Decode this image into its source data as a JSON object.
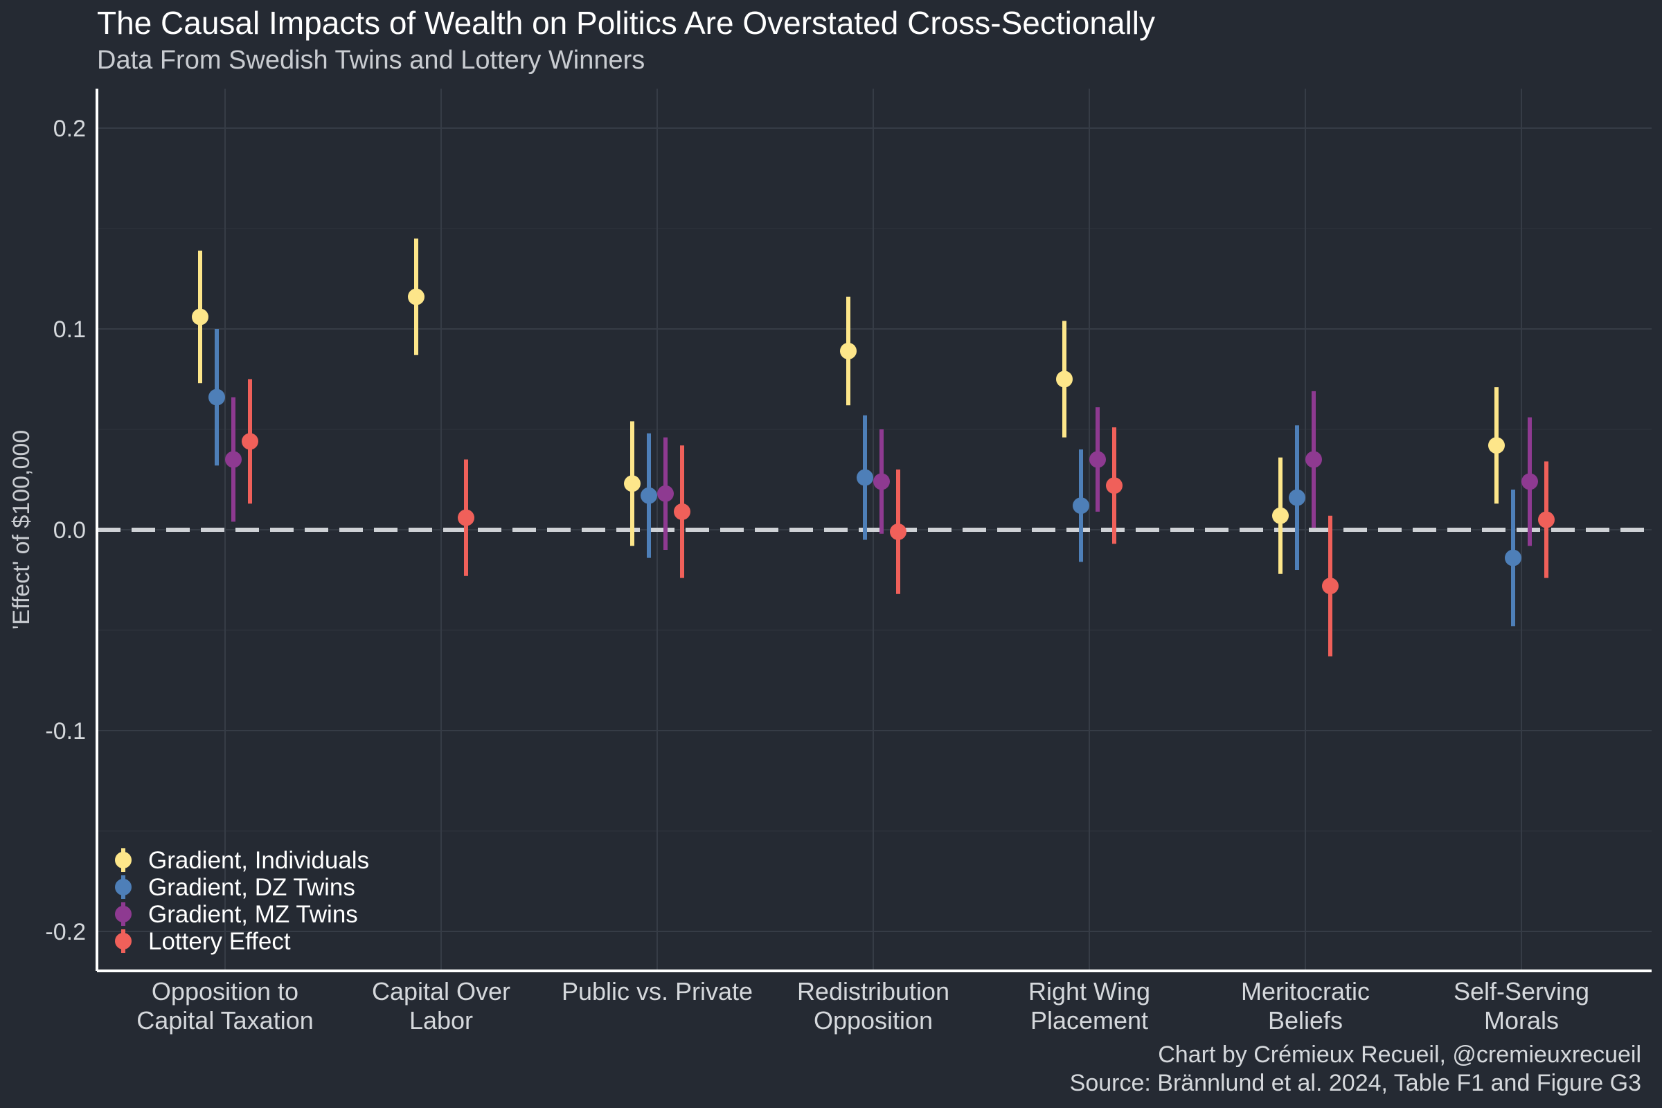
{
  "chart_data": {
    "type": "scatter",
    "title": "The Causal Impacts of Wealth on Politics Are Overstated Cross-Sectionally",
    "subtitle": "Data From Swedish Twins and Lottery Winners",
    "ylabel": "'Effect' of $100,000",
    "xlabel": "",
    "ylim": [
      -0.22,
      0.22
    ],
    "yticks": [
      -0.2,
      -0.1,
      0.0,
      0.1,
      0.2
    ],
    "ytick_labels": [
      "-0.2",
      "-0.1",
      "0.0",
      "0.1",
      "0.2"
    ],
    "reference_line": 0,
    "grid": true,
    "legend_position": "bottom-left",
    "categories": [
      [
        "Opposition to",
        "Capital Taxation"
      ],
      [
        "Capital Over",
        "Labor"
      ],
      [
        "Public vs. Private"
      ],
      [
        "Redistribution",
        "Opposition"
      ],
      [
        "Right Wing",
        "Placement"
      ],
      [
        "Meritocratic",
        "Beliefs"
      ],
      [
        "Self-Serving",
        "Morals"
      ]
    ],
    "series": [
      {
        "name": "Gradient, Individuals",
        "color": "#fde68a",
        "points": [
          {
            "x": 0,
            "y": 0.106,
            "lo": 0.073,
            "hi": 0.139
          },
          {
            "x": 1,
            "y": 0.116,
            "lo": 0.087,
            "hi": 0.145
          },
          {
            "x": 2,
            "y": 0.023,
            "lo": -0.008,
            "hi": 0.054
          },
          {
            "x": 3,
            "y": 0.089,
            "lo": 0.062,
            "hi": 0.116
          },
          {
            "x": 4,
            "y": 0.075,
            "lo": 0.046,
            "hi": 0.104
          },
          {
            "x": 5,
            "y": 0.007,
            "lo": -0.022,
            "hi": 0.036
          },
          {
            "x": 6,
            "y": 0.042,
            "lo": 0.013,
            "hi": 0.071
          }
        ]
      },
      {
        "name": "Gradient, DZ Twins",
        "color": "#4e7fb8",
        "points": [
          {
            "x": 0,
            "y": 0.066,
            "lo": 0.032,
            "hi": 0.1
          },
          {
            "x": 2,
            "y": 0.017,
            "lo": -0.014,
            "hi": 0.048
          },
          {
            "x": 3,
            "y": 0.026,
            "lo": -0.005,
            "hi": 0.057
          },
          {
            "x": 4,
            "y": 0.012,
            "lo": -0.016,
            "hi": 0.04
          },
          {
            "x": 5,
            "y": 0.016,
            "lo": -0.02,
            "hi": 0.052
          },
          {
            "x": 6,
            "y": -0.014,
            "lo": -0.048,
            "hi": 0.02
          }
        ]
      },
      {
        "name": "Gradient, MZ Twins",
        "color": "#8e3a91",
        "points": [
          {
            "x": 0,
            "y": 0.035,
            "lo": 0.004,
            "hi": 0.066
          },
          {
            "x": 2,
            "y": 0.018,
            "lo": -0.01,
            "hi": 0.046
          },
          {
            "x": 3,
            "y": 0.024,
            "lo": -0.002,
            "hi": 0.05
          },
          {
            "x": 4,
            "y": 0.035,
            "lo": 0.009,
            "hi": 0.061
          },
          {
            "x": 5,
            "y": 0.035,
            "lo": 0.001,
            "hi": 0.069
          },
          {
            "x": 6,
            "y": 0.024,
            "lo": -0.008,
            "hi": 0.056
          }
        ]
      },
      {
        "name": "Lottery Effect",
        "color": "#f0605a",
        "points": [
          {
            "x": 0,
            "y": 0.044,
            "lo": 0.013,
            "hi": 0.075
          },
          {
            "x": 1,
            "y": 0.006,
            "lo": -0.023,
            "hi": 0.035
          },
          {
            "x": 2,
            "y": 0.009,
            "lo": -0.024,
            "hi": 0.042
          },
          {
            "x": 3,
            "y": -0.001,
            "lo": -0.032,
            "hi": 0.03
          },
          {
            "x": 4,
            "y": 0.022,
            "lo": -0.007,
            "hi": 0.051
          },
          {
            "x": 5,
            "y": -0.028,
            "lo": -0.063,
            "hi": 0.007
          },
          {
            "x": 6,
            "y": 0.005,
            "lo": -0.024,
            "hi": 0.034
          }
        ]
      }
    ]
  },
  "captions": {
    "credit": "Chart by Crémieux Recueil, @cremieuxrecueil",
    "source": "Source: Brännlund et al. 2024, Table F1 and Figure G3"
  }
}
